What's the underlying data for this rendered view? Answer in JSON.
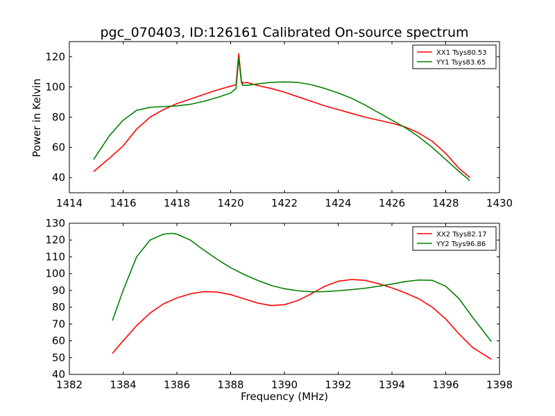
{
  "figure": {
    "title": "pgc_070403, ID:126161 Calibrated On-source spectrum",
    "xlabel": "Frequency (MHz)",
    "ylabel": "Power in Kelvin"
  },
  "colors": {
    "red": "#ff0000",
    "green": "#008000"
  },
  "chart_data": [
    {
      "type": "line",
      "xlim": [
        1414,
        1430
      ],
      "ylim": [
        30,
        130
      ],
      "xticks": [
        1414,
        1416,
        1418,
        1420,
        1422,
        1424,
        1426,
        1428,
        1430
      ],
      "yticks": [
        40,
        60,
        80,
        100,
        120
      ],
      "ylabel": "Power in Kelvin",
      "legend_position": "top-right",
      "grid": false,
      "series": [
        {
          "name": "XX1 Tsys80.53",
          "color": "#ff0000",
          "x": [
            1414.9,
            1415.5,
            1416.0,
            1416.5,
            1417.0,
            1417.5,
            1418.0,
            1418.5,
            1419.0,
            1419.5,
            1420.0,
            1420.2,
            1420.3,
            1420.4,
            1420.45,
            1420.6,
            1421.0,
            1421.5,
            1422.0,
            1422.5,
            1423.0,
            1423.5,
            1424.0,
            1424.5,
            1425.0,
            1425.5,
            1426.0,
            1426.5,
            1427.0,
            1427.5,
            1428.0,
            1428.5,
            1428.9
          ],
          "y": [
            44,
            53,
            61,
            72,
            80,
            85,
            89,
            92,
            95,
            98,
            100.5,
            101.5,
            122,
            104,
            102.5,
            103,
            101,
            99,
            96.5,
            93.5,
            90.5,
            87.5,
            85,
            82.5,
            80,
            78,
            76,
            73.5,
            69.5,
            64,
            56,
            46,
            40
          ]
        },
        {
          "name": "YY1 Tsys83.65",
          "color": "#008000",
          "x": [
            1414.9,
            1415.5,
            1416.0,
            1416.5,
            1417.0,
            1417.5,
            1418.0,
            1418.5,
            1419.0,
            1419.5,
            1420.0,
            1420.2,
            1420.3,
            1420.4,
            1420.45,
            1420.6,
            1421.0,
            1421.5,
            1422.0,
            1422.5,
            1423.0,
            1423.5,
            1424.0,
            1424.5,
            1425.0,
            1425.5,
            1426.0,
            1426.5,
            1427.0,
            1427.5,
            1428.0,
            1428.5,
            1428.9
          ],
          "y": [
            52,
            68,
            78,
            84.5,
            86.5,
            87,
            87.5,
            88.5,
            90.5,
            93,
            96,
            99,
            119,
            103,
            101,
            101,
            102,
            103,
            103.3,
            103,
            101.5,
            99,
            96,
            92.5,
            88,
            83,
            78,
            73,
            67,
            60,
            52,
            44,
            38
          ]
        }
      ]
    },
    {
      "type": "line",
      "xlim": [
        1382,
        1398
      ],
      "ylim": [
        40,
        130
      ],
      "xticks": [
        1382,
        1384,
        1386,
        1388,
        1390,
        1392,
        1394,
        1396,
        1398
      ],
      "yticks": [
        40,
        50,
        60,
        70,
        80,
        90,
        100,
        110,
        120,
        130
      ],
      "xlabel": "Frequency (MHz)",
      "legend_position": "top-right",
      "grid": false,
      "series": [
        {
          "name": "XX2 Tsys82.17",
          "color": "#ff0000",
          "x": [
            1383.6,
            1384.0,
            1384.5,
            1385.0,
            1385.5,
            1386.0,
            1386.5,
            1387.0,
            1387.5,
            1388.0,
            1388.5,
            1389.0,
            1389.5,
            1390.0,
            1390.5,
            1391.0,
            1391.5,
            1392.0,
            1392.5,
            1393.0,
            1393.5,
            1394.0,
            1394.5,
            1395.0,
            1395.5,
            1396.0,
            1396.5,
            1397.0,
            1397.7
          ],
          "y": [
            52.5,
            60,
            69,
            76.5,
            82,
            85.5,
            88,
            89.3,
            89,
            87.5,
            85,
            82.5,
            81,
            81.5,
            84,
            88,
            92.5,
            95.5,
            96.5,
            96,
            94,
            91.5,
            88.5,
            85,
            80,
            73,
            64,
            56,
            49
          ]
        },
        {
          "name": "YY2 Tsys96.86",
          "color": "#008000",
          "x": [
            1383.6,
            1384.0,
            1384.5,
            1385.0,
            1385.5,
            1385.8,
            1386.0,
            1386.5,
            1387.0,
            1387.5,
            1388.0,
            1388.5,
            1389.0,
            1389.5,
            1390.0,
            1390.5,
            1391.0,
            1391.5,
            1392.0,
            1392.5,
            1393.0,
            1393.5,
            1394.0,
            1394.5,
            1395.0,
            1395.5,
            1396.0,
            1396.5,
            1397.0,
            1397.7
          ],
          "y": [
            72,
            90,
            110,
            120,
            123.5,
            124,
            123.5,
            120,
            114,
            108.5,
            103.5,
            99.5,
            96,
            93,
            91,
            89.8,
            89.2,
            89.3,
            89.8,
            90.5,
            91.3,
            92.5,
            93.8,
            95.3,
            96.2,
            96,
            92.5,
            85,
            74,
            59.5
          ]
        }
      ]
    }
  ]
}
